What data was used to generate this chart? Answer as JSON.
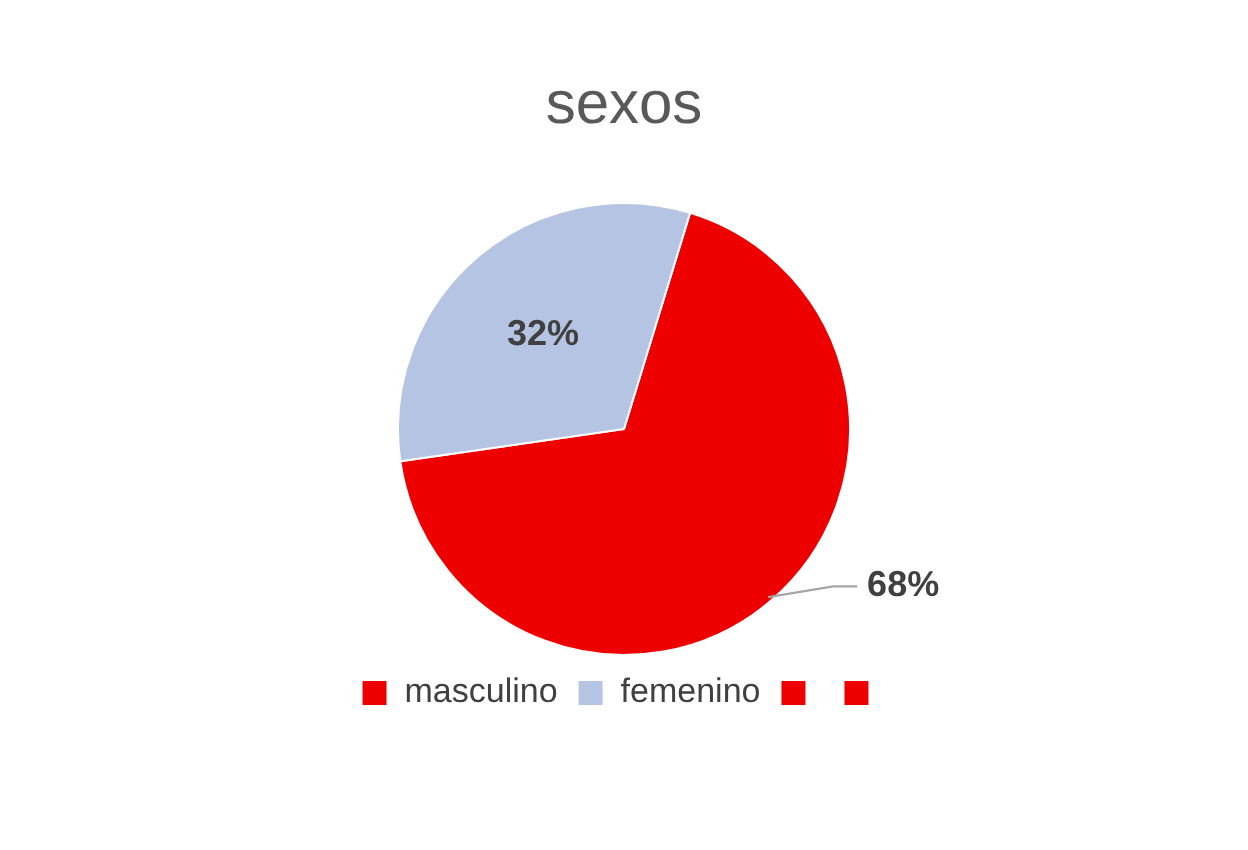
{
  "chart_data": {
    "type": "pie",
    "title": "sexos",
    "categories": [
      "masculino",
      "femenino",
      null,
      null
    ],
    "values": [
      68,
      32,
      0,
      0
    ],
    "colors": [
      "#ee0000",
      "#b4c4e2",
      "#ee0000",
      "#ee0000"
    ],
    "value_labels": [
      "68%",
      "32%",
      null,
      null
    ],
    "legend": "bottom"
  }
}
